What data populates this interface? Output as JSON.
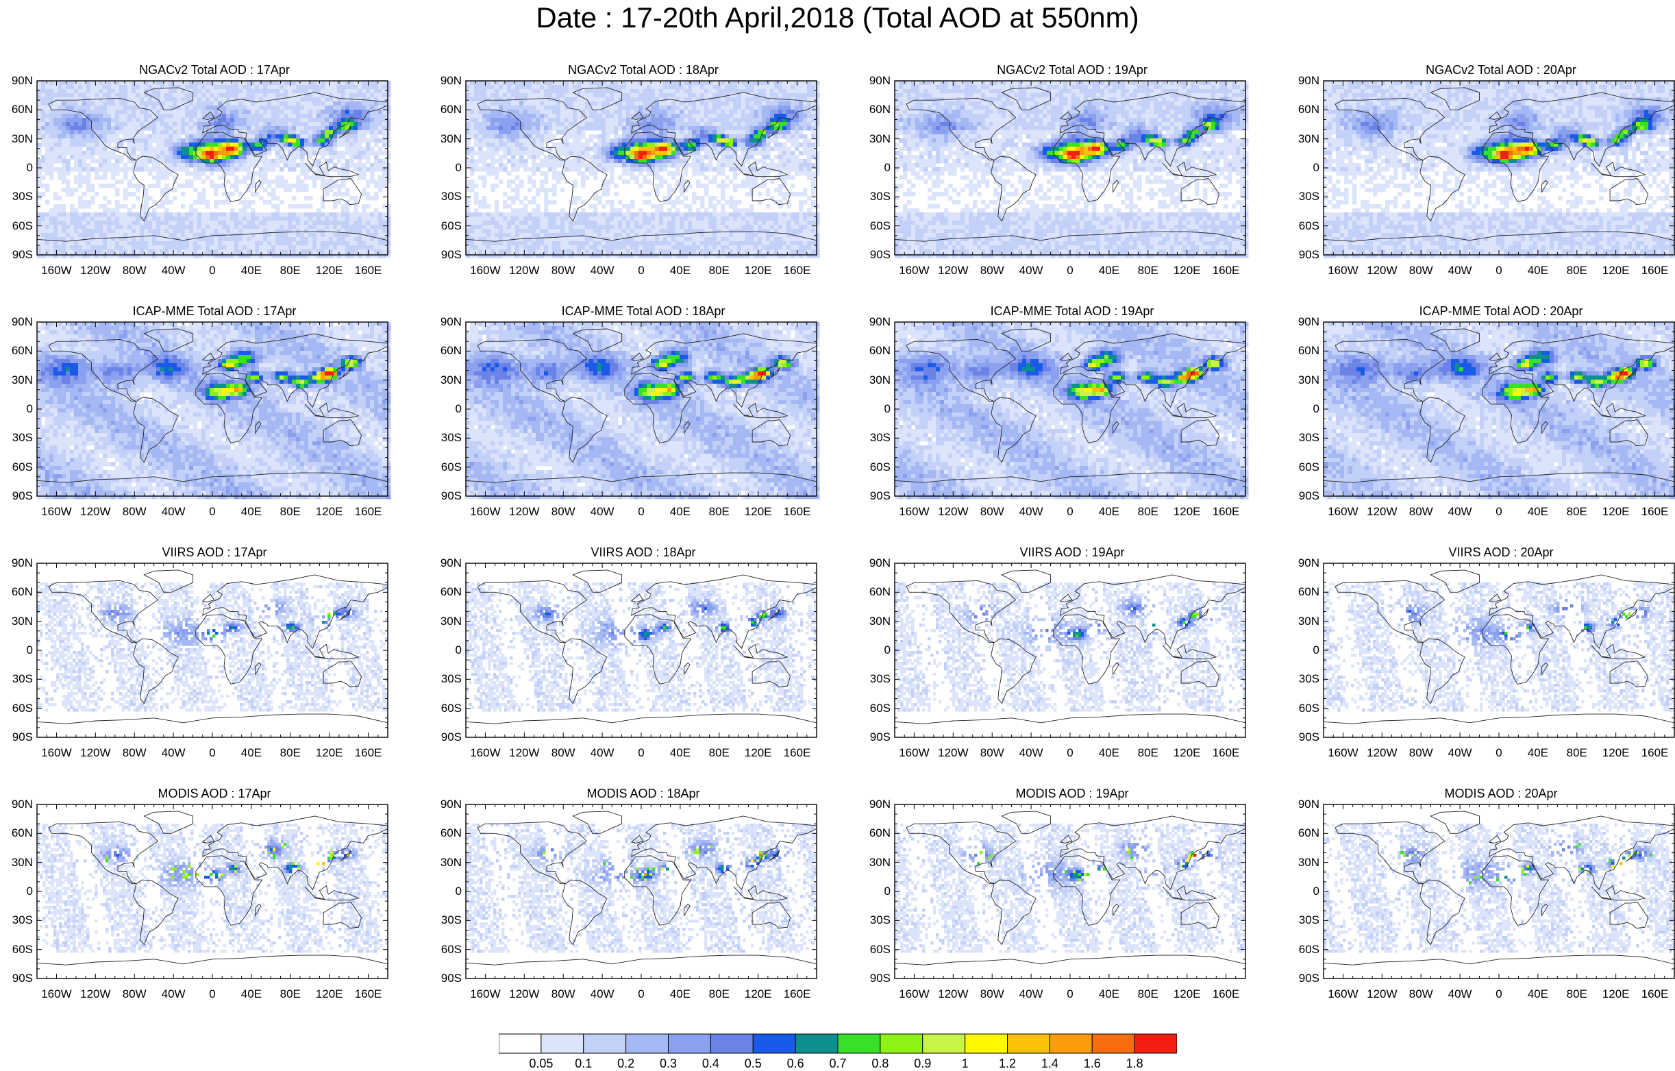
{
  "title": "Date : 17-20th April,2018 (Total AOD at 550nm)",
  "panels": [
    {
      "title": "NGACv2 Total AOD : 17Apr"
    },
    {
      "title": "NGACv2 Total AOD : 18Apr"
    },
    {
      "title": "NGACv2 Total AOD : 19Apr"
    },
    {
      "title": "NGACv2 Total AOD : 20Apr"
    },
    {
      "title": "ICAP-MME Total AOD : 17Apr"
    },
    {
      "title": "ICAP-MME Total AOD : 18Apr"
    },
    {
      "title": "ICAP-MME Total AOD : 19Apr"
    },
    {
      "title": "ICAP-MME Total AOD : 20Apr"
    },
    {
      "title": "VIIRS AOD : 17Apr"
    },
    {
      "title": "VIIRS AOD : 18Apr"
    },
    {
      "title": "VIIRS AOD : 19Apr"
    },
    {
      "title": "VIIRS AOD : 20Apr"
    },
    {
      "title": "MODIS AOD : 17Apr"
    },
    {
      "title": "MODIS AOD : 18Apr"
    },
    {
      "title": "MODIS AOD : 19Apr"
    },
    {
      "title": "MODIS AOD : 20Apr"
    }
  ],
  "lat_ticks": [
    "90N",
    "60N",
    "30N",
    "0",
    "30S",
    "60S",
    "90S"
  ],
  "lon_ticks": [
    "160W",
    "120W",
    "80W",
    "40W",
    "0",
    "40E",
    "80E",
    "120E",
    "160E"
  ],
  "colorbar": {
    "labels": [
      "0.05",
      "0.1",
      "0.2",
      "0.3",
      "0.4",
      "0.5",
      "0.6",
      "0.7",
      "0.8",
      "0.9",
      "1",
      "1.2",
      "1.4",
      "1.6",
      "1.8"
    ],
    "colors": [
      "#ffffff",
      "#dce4fb",
      "#c3d0f8",
      "#a6b8f3",
      "#8ba0ee",
      "#6b82e6",
      "#1a5ae8",
      "#0e8f8f",
      "#38e02a",
      "#8ef214",
      "#c8f44a",
      "#fff800",
      "#fcc20a",
      "#fb9c0b",
      "#f86d0d",
      "#f41f12"
    ]
  }
}
